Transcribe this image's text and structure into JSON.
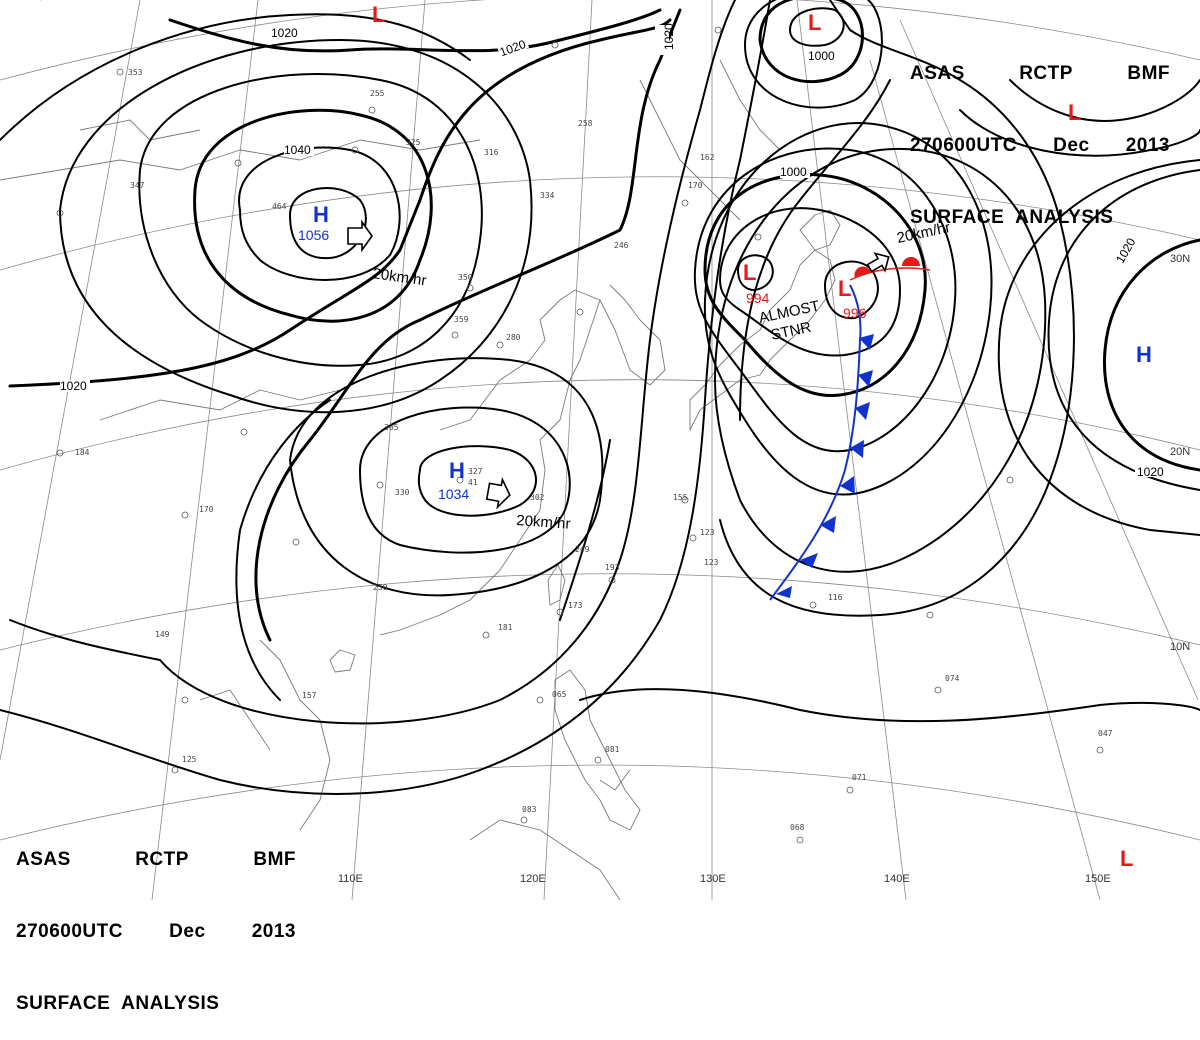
{
  "header": {
    "line1": [
      "ASAS",
      "RCTP",
      "BMF"
    ],
    "line2": [
      "270600UTC",
      "Dec",
      "2013"
    ],
    "line3": "SURFACE  ANALYSIS"
  },
  "longitude_labels": [
    "110E",
    "120E",
    "130E",
    "140E",
    "150E"
  ],
  "latitude_labels": [
    "30N",
    "20N",
    "10N"
  ],
  "isobar_labels": [
    "1020",
    "1020",
    "1020",
    "1040",
    "1000",
    "1020",
    "1020",
    "1020"
  ],
  "high_centers": [
    {
      "symbol": "H",
      "pressure": "1056"
    },
    {
      "symbol": "H",
      "pressure": "1034"
    },
    {
      "symbol": "H",
      "pressure": ""
    }
  ],
  "low_centers": [
    {
      "symbol": "L",
      "pressure": ""
    },
    {
      "symbol": "L",
      "pressure": "1000"
    },
    {
      "symbol": "L",
      "pressure": ""
    },
    {
      "symbol": "L",
      "pressure": "994"
    },
    {
      "symbol": "L",
      "pressure": "996"
    },
    {
      "symbol": "L",
      "pressure": ""
    }
  ],
  "annotations": {
    "motion_1": "20km/hr",
    "motion_2": "20km/hr",
    "motion_3": "20km/hr",
    "almost": "ALMOST",
    "stnr": "STNR"
  },
  "colors": {
    "high": "#1133cc",
    "low": "#e21a1a",
    "cold_front": "#1133cc",
    "warm_front": "#e21a1a",
    "isobar": "#000000",
    "grid": "#888888",
    "coast": "#777777"
  },
  "station_samples": [
    "327",
    "41",
    "302",
    "280",
    "350",
    "359",
    "246",
    "305",
    "330",
    "250",
    "193",
    "173",
    "181",
    "065",
    "123",
    "155",
    "249",
    "116",
    "074",
    "047",
    "081",
    "068",
    "071",
    "083",
    "157",
    "125",
    "149",
    "170",
    "184",
    "334",
    "258",
    "316",
    "325",
    "464",
    "347",
    "353",
    "255",
    "162",
    "170",
    "123"
  ]
}
